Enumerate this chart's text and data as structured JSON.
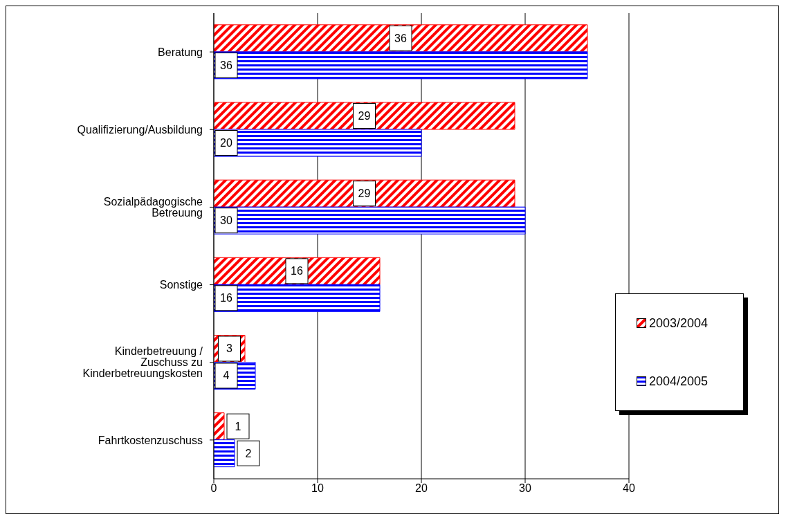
{
  "chart_data": {
    "type": "bar",
    "orientation": "horizontal",
    "categories": [
      "Beratung",
      "Qualifizierung/Ausbildung",
      "Sozialpädagogische Betreuung",
      "Sonstige",
      "Kinderbetreuung / Zuschuss zu Kinderbetreuungskosten",
      "Fahrtkostenzuschuss"
    ],
    "series": [
      {
        "name": "2003/2004",
        "color": "#ff0000",
        "values": [
          36,
          29,
          29,
          16,
          3,
          1
        ]
      },
      {
        "name": "2004/2005",
        "color": "#0000ff",
        "values": [
          36,
          20,
          30,
          16,
          4,
          2
        ]
      }
    ],
    "xlim": [
      0,
      40
    ],
    "xticks": [
      0,
      10,
      20,
      30,
      40
    ],
    "grid": "x",
    "legend": "right",
    "data_labels": true
  }
}
